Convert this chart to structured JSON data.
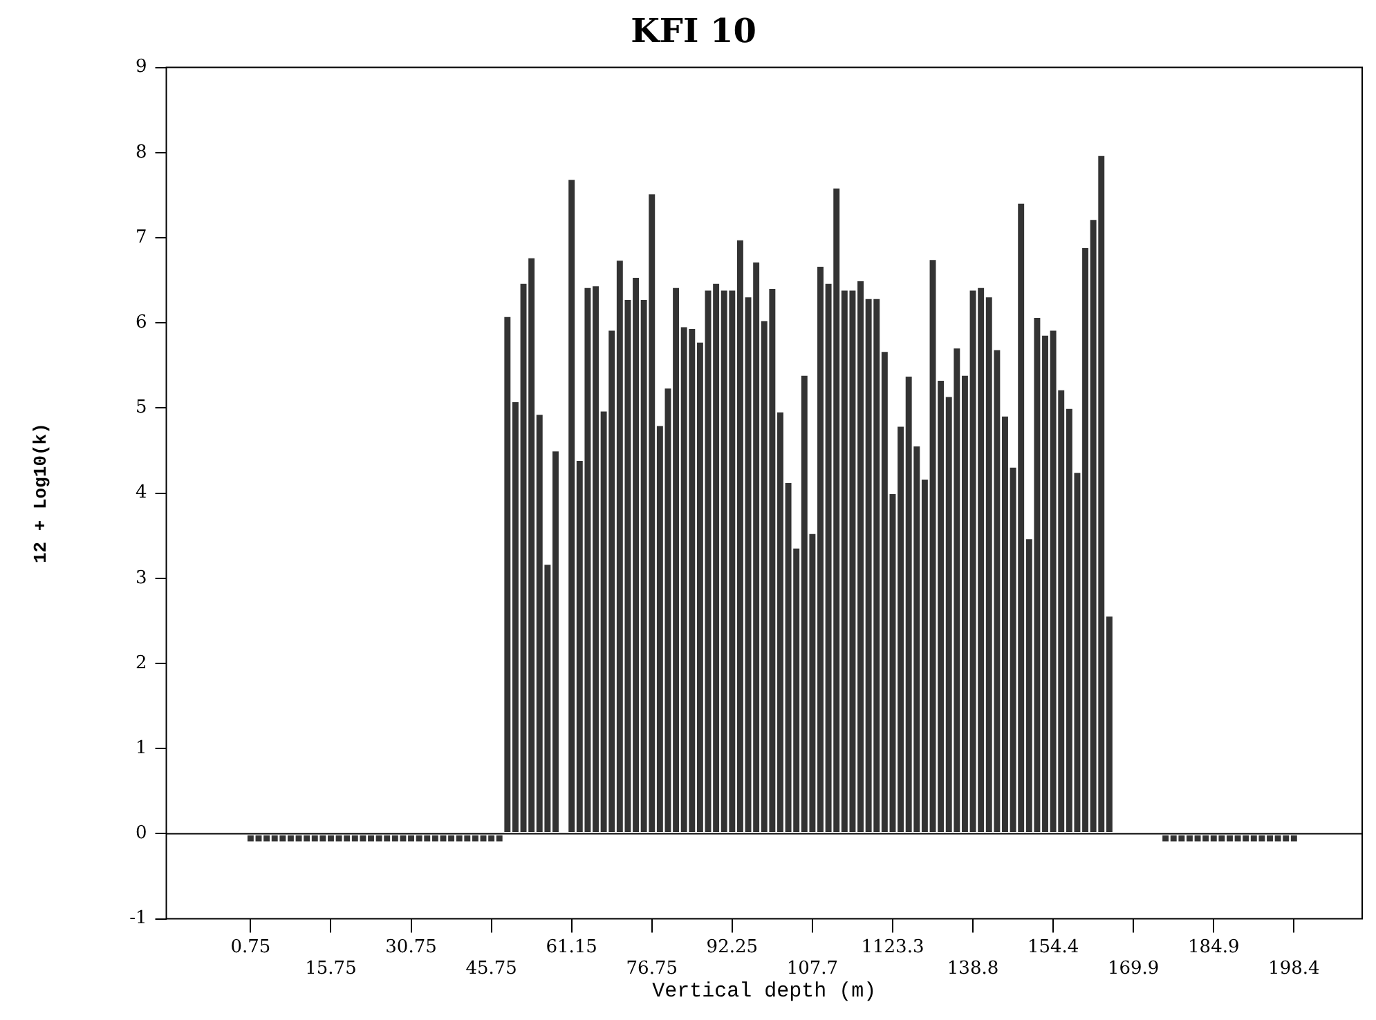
{
  "chart_data": {
    "type": "bar",
    "title": "KFI 10",
    "xlabel": "Vertical depth (m)",
    "ylabel": "12 + Log10(k)",
    "categories": [
      null,
      null,
      null,
      null,
      null,
      null,
      null,
      null,
      null,
      null,
      "0.75",
      null,
      null,
      null,
      null,
      null,
      null,
      null,
      null,
      null,
      "15.75",
      null,
      null,
      null,
      null,
      null,
      null,
      null,
      null,
      null,
      "30.75",
      null,
      null,
      null,
      null,
      null,
      null,
      null,
      null,
      null,
      "45.75",
      null,
      null,
      null,
      null,
      null,
      null,
      null,
      null,
      null,
      "61.15",
      null,
      null,
      null,
      null,
      null,
      null,
      null,
      null,
      null,
      "76.75",
      null,
      null,
      null,
      null,
      null,
      null,
      null,
      null,
      null,
      "92.25",
      null,
      null,
      null,
      null,
      null,
      null,
      null,
      null,
      null,
      "107.7",
      null,
      null,
      null,
      null,
      null,
      null,
      null,
      null,
      null,
      "1123.3",
      null,
      null,
      null,
      null,
      null,
      null,
      null,
      null,
      null,
      "138.8",
      null,
      null,
      null,
      null,
      null,
      null,
      null,
      null,
      null,
      "154.4",
      null,
      null,
      null,
      null,
      null,
      null,
      null,
      null,
      null,
      "169.9",
      null,
      null,
      null,
      null,
      null,
      null,
      null,
      null,
      null,
      "184.9",
      null,
      null,
      null,
      null,
      null,
      null,
      null,
      null,
      null,
      "198.4",
      null,
      null,
      null,
      null,
      null,
      null,
      null,
      null
    ],
    "values": [
      null,
      null,
      null,
      null,
      null,
      null,
      null,
      null,
      null,
      null,
      -0.1,
      -0.1,
      -0.1,
      -0.1,
      -0.1,
      -0.1,
      -0.1,
      -0.1,
      -0.1,
      -0.1,
      -0.1,
      -0.1,
      -0.1,
      -0.1,
      -0.1,
      -0.1,
      -0.1,
      -0.1,
      -0.1,
      -0.1,
      -0.1,
      -0.1,
      -0.1,
      -0.1,
      -0.1,
      -0.1,
      -0.1,
      -0.1,
      -0.1,
      -0.1,
      -0.1,
      -0.1,
      6.08,
      5.08,
      6.47,
      6.77,
      4.93,
      3.17,
      4.5,
      null,
      7.69,
      4.39,
      6.42,
      6.44,
      4.97,
      5.92,
      6.74,
      6.28,
      6.54,
      6.28,
      7.52,
      4.8,
      5.24,
      6.42,
      5.96,
      5.94,
      5.78,
      6.39,
      6.47,
      6.39,
      6.39,
      6.98,
      6.31,
      6.72,
      6.03,
      6.41,
      4.96,
      4.13,
      3.36,
      5.39,
      3.53,
      6.67,
      6.47,
      7.59,
      6.39,
      6.39,
      6.5,
      6.29,
      6.29,
      5.67,
      4.0,
      4.79,
      5.38,
      4.56,
      4.17,
      6.75,
      5.33,
      5.14,
      5.71,
      5.39,
      6.39,
      6.42,
      6.31,
      5.69,
      4.91,
      4.31,
      7.41,
      3.47,
      6.07,
      5.86,
      5.92,
      5.22,
      5.0,
      4.25,
      6.89,
      7.22,
      7.97,
      2.56,
      null,
      null,
      null,
      null,
      null,
      null,
      -0.1,
      -0.1,
      -0.1,
      -0.1,
      -0.1,
      -0.1,
      -0.1,
      -0.1,
      -0.1,
      -0.1,
      -0.1,
      -0.1,
      -0.1,
      -0.1,
      -0.1,
      -0.1,
      -0.1,
      null,
      null,
      null,
      null,
      null,
      null,
      null,
      null
    ],
    "color": "#333333",
    "ylim": [
      -1,
      9
    ],
    "yticks": [
      -1,
      0,
      1,
      2,
      3,
      4,
      5,
      6,
      7,
      8,
      9
    ],
    "legend": false
  }
}
